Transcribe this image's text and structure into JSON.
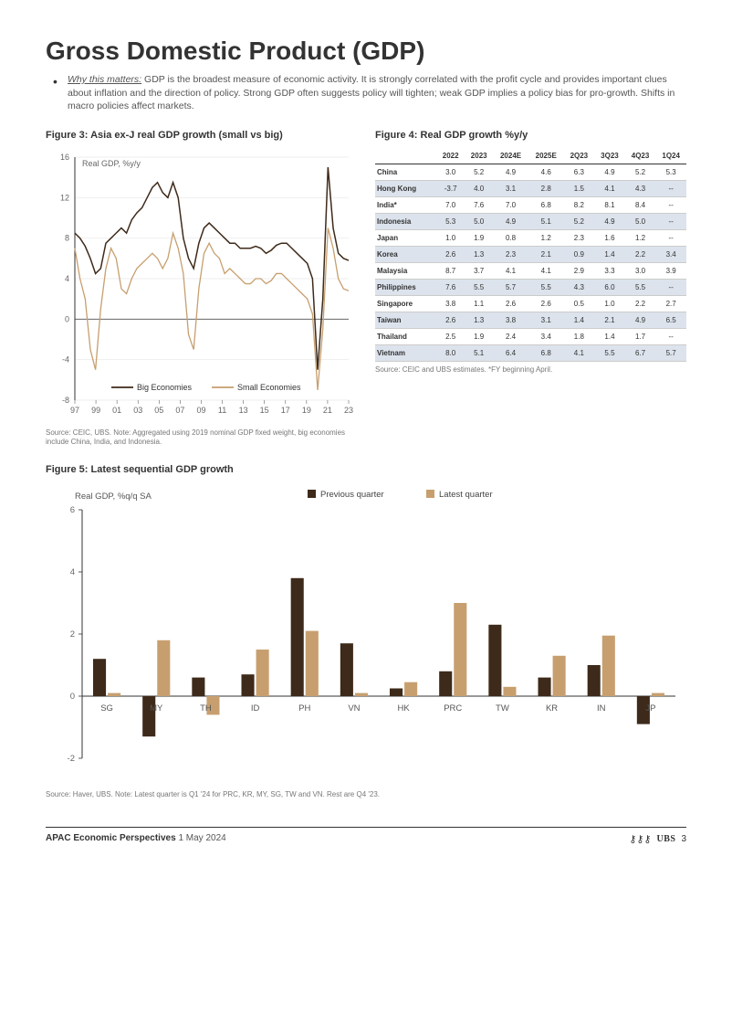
{
  "title": "Gross Domestic Product (GDP)",
  "why_label": "Why this matters:",
  "why_text": " GDP is the broadest measure of economic activity. It is strongly correlated with the profit cycle and provides important clues about inflation and the direction of policy. Strong GDP often suggests policy will tighten; weak GDP implies a policy bias for pro-growth. Shifts in macro policies affect markets.",
  "fig3": {
    "title": "Figure 3: Asia ex-J real GDP growth (small vs big)",
    "ylabel": "Real GDP, %y/y",
    "source": "Source: CEIC, UBS. Note: Aggregated using 2019 nominal GDP fixed weight, big economies include China, India, and Indonesia.",
    "ylim": [
      -8,
      16
    ],
    "ytick_step": 4,
    "xlabels": [
      "97",
      "99",
      "01",
      "03",
      "05",
      "07",
      "09",
      "11",
      "13",
      "15",
      "17",
      "19",
      "21",
      "23"
    ],
    "legend": [
      "Big Economies",
      "Small Economies"
    ],
    "colors": {
      "big": "#3e2a1a",
      "small": "#c79f6f"
    },
    "grid_color": "#e0e0e0",
    "series_big": [
      8.5,
      8.0,
      7.2,
      6.0,
      4.5,
      5.0,
      7.5,
      8.0,
      8.5,
      9.0,
      8.5,
      9.8,
      10.5,
      11.0,
      12.0,
      13.0,
      13.5,
      12.5,
      12.0,
      13.5,
      12.0,
      8.0,
      6.0,
      5.0,
      7.5,
      9.0,
      9.5,
      9.0,
      8.5,
      8.0,
      7.5,
      7.5,
      7.0,
      7.0,
      7.0,
      7.2,
      7.0,
      6.5,
      6.8,
      7.3,
      7.5,
      7.5,
      7.0,
      6.5,
      6.0,
      5.5,
      4.0,
      -5.0,
      2.0,
      15.0,
      9.0,
      6.5,
      6.0,
      5.8
    ],
    "series_small": [
      7.0,
      4.0,
      2.0,
      -3.0,
      -5.0,
      1.0,
      5.0,
      7.0,
      6.0,
      3.0,
      2.5,
      4.0,
      5.0,
      5.5,
      6.0,
      6.5,
      6.0,
      5.0,
      6.0,
      8.5,
      7.0,
      4.5,
      -1.5,
      -3.0,
      3.0,
      6.5,
      7.5,
      6.5,
      6.0,
      4.5,
      5.0,
      4.5,
      4.0,
      3.5,
      3.5,
      4.0,
      4.0,
      3.5,
      3.8,
      4.5,
      4.5,
      4.0,
      3.5,
      3.0,
      2.5,
      2.0,
      0.5,
      -7.0,
      -1.0,
      9.0,
      7.0,
      4.0,
      3.0,
      2.8
    ]
  },
  "fig4": {
    "title": "Figure 4: Real GDP growth %y/y",
    "source": "Source: CEIC and UBS estimates.  *FY beginning April.",
    "columns": [
      "",
      "2022",
      "2023",
      "2024E",
      "2025E",
      "2Q23",
      "3Q23",
      "4Q23",
      "1Q24"
    ],
    "rows": [
      {
        "shade": false,
        "cells": [
          "China",
          "3.0",
          "5.2",
          "4.9",
          "4.6",
          "6.3",
          "4.9",
          "5.2",
          "5.3"
        ]
      },
      {
        "shade": true,
        "cells": [
          "Hong Kong",
          "-3.7",
          "4.0",
          "3.1",
          "2.8",
          "1.5",
          "4.1",
          "4.3",
          "--"
        ]
      },
      {
        "shade": false,
        "cells": [
          "India*",
          "7.0",
          "7.6",
          "7.0",
          "6.8",
          "8.2",
          "8.1",
          "8.4",
          "--"
        ]
      },
      {
        "shade": true,
        "cells": [
          "Indonesia",
          "5.3",
          "5.0",
          "4.9",
          "5.1",
          "5.2",
          "4.9",
          "5.0",
          "--"
        ]
      },
      {
        "shade": false,
        "cells": [
          "Japan",
          "1.0",
          "1.9",
          "0.8",
          "1.2",
          "2.3",
          "1.6",
          "1.2",
          "--"
        ]
      },
      {
        "shade": true,
        "cells": [
          "Korea",
          "2.6",
          "1.3",
          "2.3",
          "2.1",
          "0.9",
          "1.4",
          "2.2",
          "3.4"
        ]
      },
      {
        "shade": false,
        "cells": [
          "Malaysia",
          "8.7",
          "3.7",
          "4.1",
          "4.1",
          "2.9",
          "3.3",
          "3.0",
          "3.9"
        ]
      },
      {
        "shade": true,
        "cells": [
          "Philippines",
          "7.6",
          "5.5",
          "5.7",
          "5.5",
          "4.3",
          "6.0",
          "5.5",
          "--"
        ]
      },
      {
        "shade": false,
        "cells": [
          "Singapore",
          "3.8",
          "1.1",
          "2.6",
          "2.6",
          "0.5",
          "1.0",
          "2.2",
          "2.7"
        ]
      },
      {
        "shade": true,
        "cells": [
          "Taiwan",
          "2.6",
          "1.3",
          "3.8",
          "3.1",
          "1.4",
          "2.1",
          "4.9",
          "6.5"
        ]
      },
      {
        "shade": false,
        "cells": [
          "Thailand",
          "2.5",
          "1.9",
          "2.4",
          "3.4",
          "1.8",
          "1.4",
          "1.7",
          "--"
        ]
      },
      {
        "shade": true,
        "cells": [
          "Vietnam",
          "8.0",
          "5.1",
          "6.4",
          "6.8",
          "4.1",
          "5.5",
          "6.7",
          "5.7"
        ]
      }
    ]
  },
  "fig5": {
    "title": "Figure 5: Latest sequential GDP growth",
    "ylabel": "Real GDP, %q/q SA",
    "source": "Source: Haver, UBS. Note: Latest quarter is Q1 '24 for PRC, KR, MY, SG, TW and VN. Rest are Q4 '23.",
    "ylim": [
      -2,
      6
    ],
    "ytick_step": 2,
    "legend": [
      "Previous quarter",
      "Latest quarter"
    ],
    "colors": {
      "prev": "#3e2a1a",
      "latest": "#c79f6f"
    },
    "categories": [
      "SG",
      "MY",
      "TH",
      "ID",
      "PH",
      "VN",
      "HK",
      "PRC",
      "TW",
      "KR",
      "IN",
      "JP"
    ],
    "prev": [
      1.2,
      -1.3,
      0.6,
      0.7,
      3.8,
      1.7,
      0.25,
      0.8,
      2.3,
      0.6,
      1.0,
      -0.9
    ],
    "latest": [
      0.1,
      1.8,
      -0.6,
      1.5,
      2.1,
      0.1,
      0.45,
      3.0,
      0.3,
      1.3,
      1.95,
      0.1
    ]
  },
  "footer": {
    "title": "APAC Economic Perspectives",
    "date": "1 May 2024",
    "brand": "UBS",
    "page": "3"
  }
}
